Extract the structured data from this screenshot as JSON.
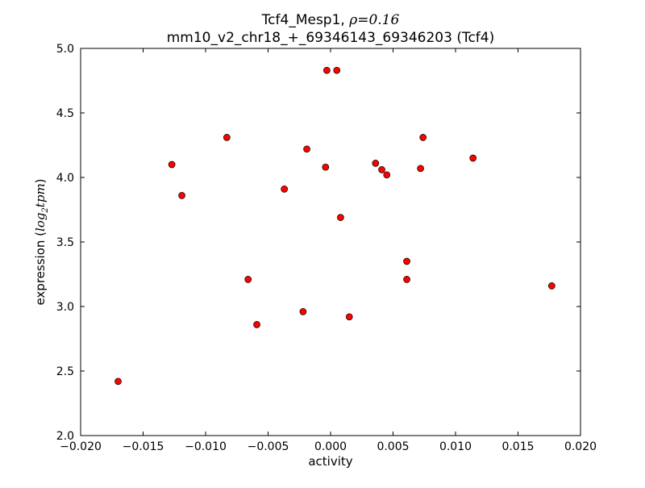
{
  "chart_data": {
    "type": "scatter",
    "title_line1_prefix": "Tcf4_Mesp1, ",
    "title_line1_math": "ρ=0.16",
    "title_line2": "mm10_v2_chr18_+_69346143_69346203 (Tcf4)",
    "xlabel": "activity",
    "ylabel_prefix": "expression (",
    "ylabel_math": "log",
    "ylabel_sub": "2",
    "ylabel_math2": "tpm",
    "ylabel_suffix": ")",
    "xlim": [
      -0.02,
      0.02
    ],
    "ylim": [
      2.0,
      5.0
    ],
    "xticks": [
      -0.02,
      -0.015,
      -0.01,
      -0.005,
      0.0,
      0.005,
      0.01,
      0.015,
      0.02
    ],
    "xtick_labels": [
      "−0.020",
      "−0.015",
      "−0.010",
      "−0.005",
      "0.000",
      "0.005",
      "0.010",
      "0.015",
      "0.020"
    ],
    "yticks": [
      2.0,
      2.5,
      3.0,
      3.5,
      4.0,
      4.5,
      5.0
    ],
    "ytick_labels": [
      "2.0",
      "2.5",
      "3.0",
      "3.5",
      "4.0",
      "4.5",
      "5.0"
    ],
    "grid": false,
    "marker_color": "#ff0000",
    "points": [
      [
        -0.017,
        2.42
      ],
      [
        -0.0127,
        4.1
      ],
      [
        -0.0119,
        3.86
      ],
      [
        -0.0083,
        4.31
      ],
      [
        -0.0066,
        3.21
      ],
      [
        -0.0059,
        2.86
      ],
      [
        -0.0037,
        3.91
      ],
      [
        -0.0022,
        2.96
      ],
      [
        -0.0019,
        4.22
      ],
      [
        -0.0004,
        4.08
      ],
      [
        -0.0003,
        4.83
      ],
      [
        0.0005,
        4.83
      ],
      [
        0.0008,
        3.69
      ],
      [
        0.0015,
        2.92
      ],
      [
        0.0036,
        4.11
      ],
      [
        0.0041,
        4.06
      ],
      [
        0.0045,
        4.02
      ],
      [
        0.0061,
        3.35
      ],
      [
        0.0061,
        3.21
      ],
      [
        0.0072,
        4.07
      ],
      [
        0.0074,
        4.31
      ],
      [
        0.0114,
        4.15
      ],
      [
        0.0177,
        3.16
      ]
    ]
  }
}
